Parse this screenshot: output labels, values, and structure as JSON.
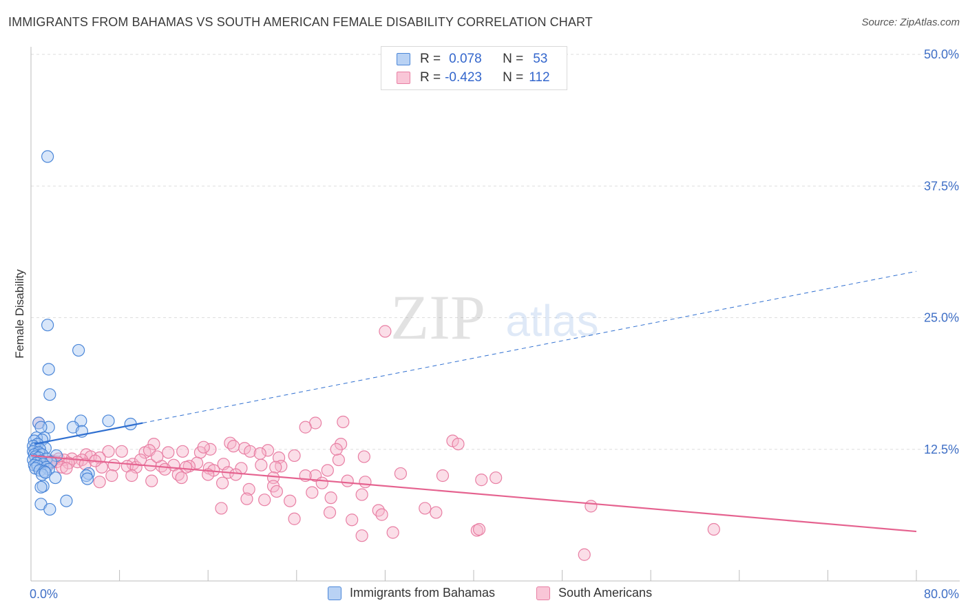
{
  "title": "IMMIGRANTS FROM BAHAMAS VS SOUTH AMERICAN FEMALE DISABILITY CORRELATION CHART",
  "source": "Source: ZipAtlas.com",
  "watermark": {
    "zip": "ZIP",
    "atlas": "atlas"
  },
  "legend": {
    "rows": [
      {
        "r_label": "R =",
        "r_value": "0.078",
        "n_label": "N =",
        "n_value": "53"
      },
      {
        "r_label": "R =",
        "r_value": "-0.423",
        "n_label": "N =",
        "n_value": "112"
      }
    ]
  },
  "bottom_legend": {
    "series1": "Immigrants from Bahamas",
    "series2": "South Americans"
  },
  "colors": {
    "blue_fill": "#a9c8f2",
    "blue_stroke": "#4a86d8",
    "blue_line": "#2f6fd0",
    "pink_fill": "#f7b5cb",
    "pink_stroke": "#e87ea3",
    "pink_line": "#e5628f",
    "axis_text": "#3f6fc6",
    "grid": "#dddddd"
  },
  "chart_data": {
    "type": "scatter",
    "title": "IMMIGRANTS FROM BAHAMAS VS SOUTH AMERICAN FEMALE DISABILITY CORRELATION CHART",
    "xlabel": "",
    "ylabel": "Female Disability",
    "xlim": [
      0,
      80
    ],
    "ylim": [
      0,
      50
    ],
    "x_tick_labels": [
      "0.0%",
      "80.0%"
    ],
    "y_ticks": [
      12.5,
      25.0,
      37.5,
      50.0
    ],
    "y_tick_labels": [
      "12.5%",
      "25.0%",
      "37.5%",
      "50.0%"
    ],
    "series": [
      {
        "name": "Immigrants from Bahamas",
        "R": 0.078,
        "N": 53,
        "trend_solid": [
          [
            0.3,
            13.0
          ],
          [
            10.1,
            15.0
          ]
        ],
        "trend_dashed": [
          [
            10.1,
            15.0
          ],
          [
            80,
            29.4
          ]
        ],
        "points": [
          [
            1.5,
            40.3
          ],
          [
            1.5,
            24.3
          ],
          [
            4.3,
            21.9
          ],
          [
            1.6,
            20.1
          ],
          [
            1.7,
            17.7
          ],
          [
            7.0,
            15.2
          ],
          [
            4.5,
            15.2
          ],
          [
            0.7,
            15.0
          ],
          [
            9.0,
            14.9
          ],
          [
            1.6,
            14.6
          ],
          [
            0.9,
            14.6
          ],
          [
            3.8,
            14.6
          ],
          [
            4.6,
            14.2
          ],
          [
            1.2,
            13.6
          ],
          [
            0.5,
            13.6
          ],
          [
            1.0,
            13.4
          ],
          [
            0.3,
            13.3
          ],
          [
            0.6,
            13.0
          ],
          [
            0.2,
            12.8
          ],
          [
            0.4,
            12.6
          ],
          [
            1.3,
            12.6
          ],
          [
            0.8,
            12.5
          ],
          [
            0.2,
            12.3
          ],
          [
            0.7,
            12.2
          ],
          [
            0.3,
            12.0
          ],
          [
            1.0,
            12.0
          ],
          [
            2.3,
            11.9
          ],
          [
            0.4,
            11.8
          ],
          [
            0.7,
            11.7
          ],
          [
            1.4,
            11.6
          ],
          [
            0.2,
            11.5
          ],
          [
            0.9,
            11.4
          ],
          [
            1.8,
            11.3
          ],
          [
            0.5,
            11.2
          ],
          [
            1.1,
            11.1
          ],
          [
            0.3,
            11.0
          ],
          [
            0.6,
            10.9
          ],
          [
            1.4,
            10.8
          ],
          [
            0.4,
            10.7
          ],
          [
            1.6,
            10.6
          ],
          [
            0.8,
            10.5
          ],
          [
            1.2,
            10.4
          ],
          [
            5.2,
            10.2
          ],
          [
            1.0,
            10.1
          ],
          [
            5.0,
            10.0
          ],
          [
            2.2,
            9.8
          ],
          [
            5.1,
            9.7
          ],
          [
            1.1,
            9.0
          ],
          [
            0.9,
            8.9
          ],
          [
            3.2,
            7.6
          ],
          [
            0.9,
            7.3
          ],
          [
            1.7,
            6.8
          ],
          [
            1.3,
            10.3
          ]
        ]
      },
      {
        "name": "South Americans",
        "R": -0.423,
        "N": 112,
        "trend_solid": [
          [
            0,
            11.9
          ],
          [
            80,
            4.7
          ]
        ],
        "points": [
          [
            32.0,
            23.7
          ],
          [
            0.7,
            15.0
          ],
          [
            28.2,
            15.1
          ],
          [
            25.7,
            15.0
          ],
          [
            24.8,
            14.6
          ],
          [
            38.1,
            13.3
          ],
          [
            38.6,
            13.0
          ],
          [
            28.0,
            13.0
          ],
          [
            18.0,
            13.1
          ],
          [
            18.3,
            12.8
          ],
          [
            11.1,
            13.0
          ],
          [
            19.3,
            12.6
          ],
          [
            16.2,
            12.5
          ],
          [
            19.8,
            12.3
          ],
          [
            21.4,
            12.4
          ],
          [
            7.0,
            12.3
          ],
          [
            8.2,
            12.3
          ],
          [
            15.3,
            12.2
          ],
          [
            10.3,
            12.2
          ],
          [
            10.7,
            12.4
          ],
          [
            12.4,
            12.2
          ],
          [
            13.7,
            12.3
          ],
          [
            20.7,
            12.1
          ],
          [
            23.8,
            11.9
          ],
          [
            30.1,
            11.8
          ],
          [
            22.4,
            11.7
          ],
          [
            27.8,
            11.5
          ],
          [
            5.0,
            12.0
          ],
          [
            5.4,
            11.8
          ],
          [
            6.2,
            11.7
          ],
          [
            3.7,
            11.6
          ],
          [
            2.5,
            11.6
          ],
          [
            4.6,
            11.5
          ],
          [
            3.0,
            11.5
          ],
          [
            1.9,
            11.4
          ],
          [
            2.3,
            11.3
          ],
          [
            1.4,
            11.3
          ],
          [
            4.2,
            11.3
          ],
          [
            1.8,
            11.2
          ],
          [
            3.4,
            11.2
          ],
          [
            4.9,
            11.1
          ],
          [
            9.2,
            11.1
          ],
          [
            10.8,
            11.0
          ],
          [
            17.4,
            11.1
          ],
          [
            20.8,
            11.0
          ],
          [
            22.6,
            10.9
          ],
          [
            15.0,
            11.2
          ],
          [
            12.9,
            11.0
          ],
          [
            14.3,
            10.9
          ],
          [
            7.5,
            11.0
          ],
          [
            2.8,
            10.8
          ],
          [
            8.7,
            10.9
          ],
          [
            6.4,
            10.8
          ],
          [
            9.5,
            10.8
          ],
          [
            11.8,
            10.9
          ],
          [
            12.1,
            10.6
          ],
          [
            14.0,
            10.8
          ],
          [
            16.1,
            10.7
          ],
          [
            16.5,
            10.5
          ],
          [
            19.0,
            10.7
          ],
          [
            22.1,
            10.8
          ],
          [
            26.8,
            10.5
          ],
          [
            17.8,
            10.3
          ],
          [
            16.0,
            10.1
          ],
          [
            18.5,
            10.1
          ],
          [
            7.3,
            10.0
          ],
          [
            13.3,
            10.1
          ],
          [
            9.1,
            10.0
          ],
          [
            25.7,
            10.0
          ],
          [
            24.8,
            10.0
          ],
          [
            37.2,
            10.0
          ],
          [
            21.9,
            9.8
          ],
          [
            42.0,
            9.8
          ],
          [
            40.7,
            9.6
          ],
          [
            28.6,
            9.5
          ],
          [
            30.2,
            9.4
          ],
          [
            6.2,
            9.4
          ],
          [
            10.9,
            9.5
          ],
          [
            17.3,
            9.3
          ],
          [
            21.9,
            9.0
          ],
          [
            19.7,
            8.7
          ],
          [
            25.4,
            8.4
          ],
          [
            22.2,
            8.5
          ],
          [
            29.9,
            8.2
          ],
          [
            27.1,
            7.9
          ],
          [
            21.1,
            7.7
          ],
          [
            23.4,
            7.6
          ],
          [
            19.5,
            7.8
          ],
          [
            50.6,
            7.1
          ],
          [
            17.2,
            6.9
          ],
          [
            31.4,
            6.7
          ],
          [
            35.6,
            6.9
          ],
          [
            36.6,
            6.5
          ],
          [
            31.7,
            6.3
          ],
          [
            27.0,
            6.5
          ],
          [
            23.8,
            5.9
          ],
          [
            29.0,
            5.8
          ],
          [
            40.3,
            4.8
          ],
          [
            40.5,
            4.9
          ],
          [
            61.7,
            4.9
          ],
          [
            32.7,
            4.6
          ],
          [
            29.9,
            4.3
          ],
          [
            50.0,
            2.5
          ],
          [
            26.3,
            9.3
          ],
          [
            33.4,
            10.2
          ],
          [
            9.9,
            11.5
          ],
          [
            5.8,
            11.4
          ],
          [
            15.6,
            12.7
          ],
          [
            27.6,
            12.5
          ],
          [
            11.4,
            11.8
          ],
          [
            3.2,
            10.7
          ],
          [
            13.6,
            9.8
          ]
        ]
      }
    ]
  }
}
